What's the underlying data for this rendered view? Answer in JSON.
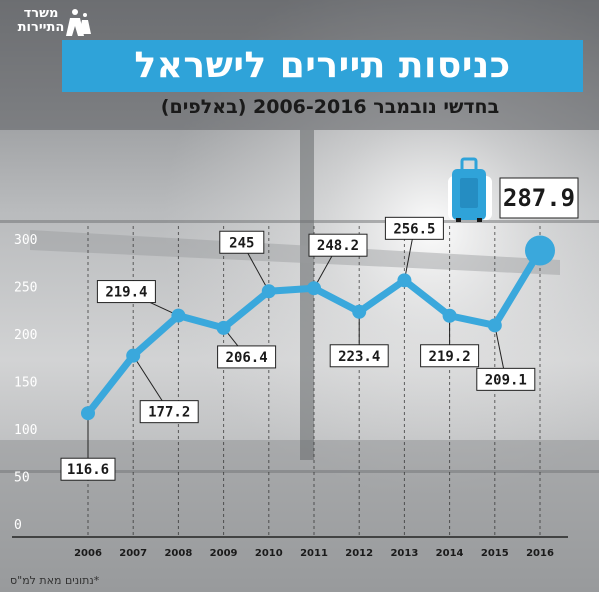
{
  "header": {
    "logo_line1": "משרד",
    "logo_line2": "התיירות"
  },
  "chart_data": {
    "type": "line",
    "title": "כניסות תיירים לישראל",
    "subtitle": "בחדשי נובמבר 2006-2016 (באלפים)",
    "x": [
      "2006",
      "2007",
      "2008",
      "2009",
      "2010",
      "2011",
      "2012",
      "2013",
      "2014",
      "2015",
      "2016"
    ],
    "y_ticks": [
      0,
      50,
      100,
      150,
      200,
      250,
      300
    ],
    "ylim": [
      0,
      300
    ],
    "series": [
      {
        "values": [
          116.6,
          177.2,
          219.4,
          206.4,
          245,
          248.2,
          223.4,
          256.5,
          219.2,
          209.1,
          287.9
        ],
        "labels": [
          "116.6",
          "177.2",
          "219.4",
          "206.4",
          "245",
          "248.2",
          "223.4",
          "256.5",
          "219.2",
          "209.1",
          "287.9"
        ]
      }
    ],
    "line_color": "#3aa8dc",
    "highlight_icon": "suitcase-icon",
    "grid": "vertical-dashed"
  },
  "footer": {
    "source": "*נתונים מאת למ\"ס"
  }
}
